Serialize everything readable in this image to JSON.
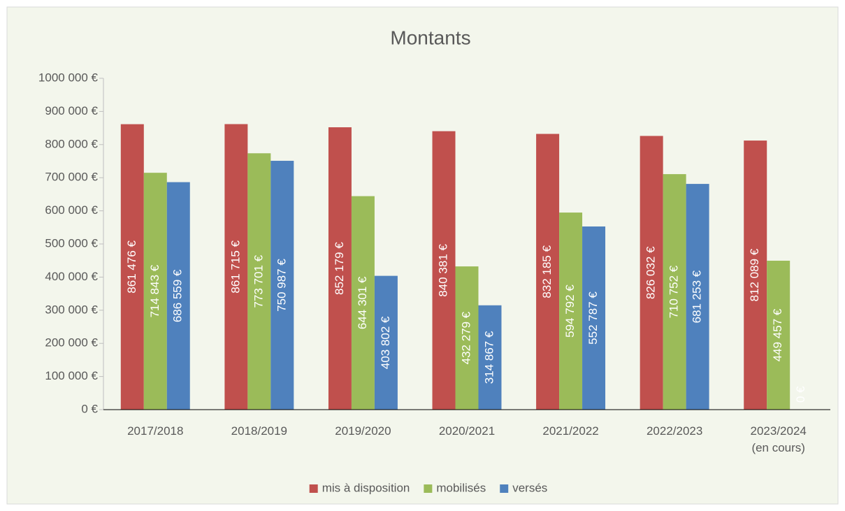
{
  "chart_data": {
    "type": "bar",
    "title": "Montants",
    "categories": [
      "2017/2018",
      "2018/2019",
      "2019/2020",
      "2020/2021",
      "2021/2022",
      "2022/2023",
      "2023/2024\n(en cours)"
    ],
    "series": [
      {
        "name": "mis à disposition",
        "color": "#c0504d",
        "values": [
          861476,
          861715,
          852179,
          840381,
          832185,
          826032,
          812089
        ],
        "value_labels": [
          "861 476 €",
          "861 715 €",
          "852 179 €",
          "840 381 €",
          "832 185 €",
          "826 032 €",
          "812 089 €"
        ]
      },
      {
        "name": "mobilisés",
        "color": "#9bbb59",
        "values": [
          714843,
          773701,
          644301,
          432279,
          594792,
          710752,
          449457
        ],
        "value_labels": [
          "714 843 €",
          "773 701 €",
          "644 301 €",
          "432 279 €",
          "594 792 €",
          "710 752 €",
          "449 457 €"
        ]
      },
      {
        "name": "versés",
        "color": "#4f81bd",
        "values": [
          686559,
          750987,
          403802,
          314867,
          552787,
          681253,
          0
        ],
        "value_labels": [
          "686 559 €",
          "750 987 €",
          "403 802 €",
          "314 867 €",
          "552 787 €",
          "681 253 €",
          "0 €"
        ]
      }
    ],
    "ylim": [
      0,
      1000000
    ],
    "yticks": [
      {
        "value": 0,
        "label": "0 €"
      },
      {
        "value": 100000,
        "label": "100 000 €"
      },
      {
        "value": 200000,
        "label": "200 000 €"
      },
      {
        "value": 300000,
        "label": "300 000 €"
      },
      {
        "value": 400000,
        "label": "400 000 €"
      },
      {
        "value": 500000,
        "label": "500 000 €"
      },
      {
        "value": 600000,
        "label": "600 000 €"
      },
      {
        "value": 700000,
        "label": "700 000 €"
      },
      {
        "value": 800000,
        "label": "800 000 €"
      },
      {
        "value": 900000,
        "label": "900 000 €"
      },
      {
        "value": 1000000,
        "label": "1000 000 €"
      }
    ],
    "legend": "bottom"
  }
}
